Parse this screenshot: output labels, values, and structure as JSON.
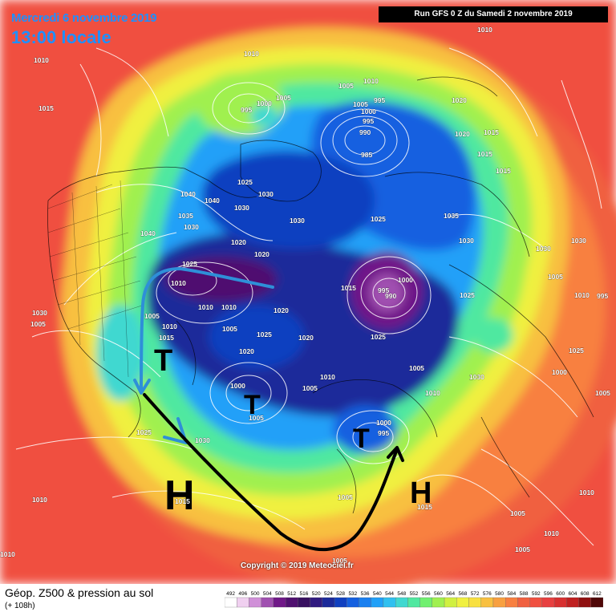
{
  "header": {
    "date": "Mercredi 6 novembre 2019",
    "time": "13:00 locale",
    "run": "Run GFS 0 Z du Samedi 2 novembre 2019"
  },
  "footer": {
    "title": "Géop. Z500 & pression au sol",
    "subtitle": "(+ 108h)",
    "copyright": "Copyright © 2019 Meteociel.fr"
  },
  "scale": {
    "values": [
      "492",
      "496",
      "500",
      "504",
      "508",
      "512",
      "516",
      "520",
      "524",
      "528",
      "532",
      "536",
      "540",
      "544",
      "548",
      "552",
      "556",
      "560",
      "564",
      "568",
      "572",
      "576",
      "580",
      "584",
      "588",
      "592",
      "596",
      "600",
      "604",
      "608",
      "612"
    ],
    "colors": [
      "#ffffff",
      "#f0d0f0",
      "#d090d8",
      "#a050b0",
      "#701888",
      "#501070",
      "#381060",
      "#301a80",
      "#1c2a9a",
      "#1040c0",
      "#1460e0",
      "#1a80f0",
      "#20a0f8",
      "#30c0f0",
      "#40d8d0",
      "#50e8a0",
      "#70f070",
      "#a0f050",
      "#d0f040",
      "#f0f040",
      "#f8e040",
      "#f8c040",
      "#f8a040",
      "#f88040",
      "#f06040",
      "#f05040",
      "#e84040",
      "#d83030",
      "#c02020",
      "#901010",
      "#500808"
    ]
  },
  "symbols": [
    {
      "text": "H",
      "name": "high-pressure-h-atlantic"
    },
    {
      "text": "H",
      "name": "high-pressure-h-east"
    },
    {
      "text": "T",
      "name": "low-pressure-t-canada"
    },
    {
      "text": "T",
      "name": "low-pressure-t-greenland"
    },
    {
      "text": "T",
      "name": "low-pressure-t-europe"
    }
  ],
  "isobar_labels": [
    "1010",
    "1015",
    "1010",
    "1010",
    "1005",
    "995",
    "1000",
    "1005",
    "1010",
    "995",
    "1005",
    "995",
    "1000",
    "1020",
    "990",
    "985",
    "1020",
    "1015",
    "1015",
    "1015",
    "1040",
    "1025",
    "1030",
    "1040",
    "1030",
    "1035",
    "1025",
    "1035",
    "1030",
    "1030",
    "1040",
    "1020",
    "1025",
    "1020",
    "1010",
    "1015",
    "1020",
    "1010",
    "1010",
    "1010",
    "1020",
    "995",
    "1000",
    "990",
    "1030",
    "1030",
    "1030",
    "1005",
    "1010",
    "1025",
    "1005",
    "1025",
    "1020",
    "1005",
    "1015",
    "1025",
    "1025",
    "1010",
    "1000",
    "1005",
    "1005",
    "1000",
    "1005",
    "1010",
    "1030",
    "1005",
    "1030",
    "1025",
    "1030",
    "1005",
    "1000",
    "995",
    "1010",
    "1015",
    "1010",
    "1005",
    "1005",
    "1010",
    "1010",
    "1005",
    "1005",
    "995",
    "1015"
  ]
}
